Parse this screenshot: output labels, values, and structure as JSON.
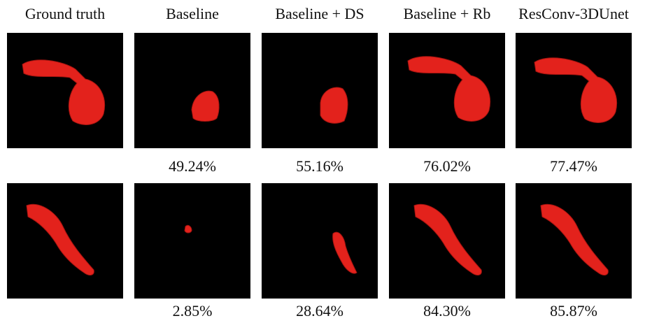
{
  "columns": [
    "Ground truth",
    "Baseline",
    "Baseline + DS",
    "Baseline + Rb",
    "ResConv-3DUnet"
  ],
  "rows": [
    {
      "scores": [
        "49.24%",
        "55.16%",
        "76.02%",
        "77.47%"
      ]
    },
    {
      "scores": [
        "2.85%",
        "28.64%",
        "84.30%",
        "85.87%"
      ]
    }
  ]
}
